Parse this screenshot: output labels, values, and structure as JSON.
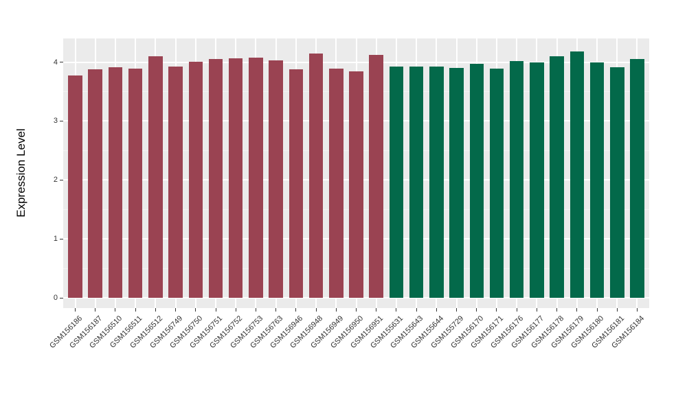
{
  "chart_data": {
    "type": "bar",
    "title": "",
    "xlabel": "",
    "ylabel": "Expression Level",
    "ylim": [
      0,
      4.4
    ],
    "yticks": [
      0,
      1,
      2,
      3,
      4
    ],
    "grid": true,
    "legend": "none",
    "panel_bg": "#EBEBEB",
    "grid_major_color": "#FFFFFF",
    "grid_minor_color": "#F4F4F4",
    "axis_text_color": "#333333",
    "group_colors": {
      "maroon": "#9A4352",
      "green": "#03694A"
    },
    "bars": [
      {
        "label": "GSM156186",
        "value": 3.77,
        "color": "#9A4352"
      },
      {
        "label": "GSM156187",
        "value": 3.88,
        "color": "#9A4352"
      },
      {
        "label": "GSM156510",
        "value": 3.91,
        "color": "#9A4352"
      },
      {
        "label": "GSM156511",
        "value": 3.89,
        "color": "#9A4352"
      },
      {
        "label": "GSM156512",
        "value": 4.1,
        "color": "#9A4352"
      },
      {
        "label": "GSM156749",
        "value": 3.93,
        "color": "#9A4352"
      },
      {
        "label": "GSM156750",
        "value": 4.01,
        "color": "#9A4352"
      },
      {
        "label": "GSM156751",
        "value": 4.05,
        "color": "#9A4352"
      },
      {
        "label": "GSM156752",
        "value": 4.06,
        "color": "#9A4352"
      },
      {
        "label": "GSM156753",
        "value": 4.07,
        "color": "#9A4352"
      },
      {
        "label": "GSM156763",
        "value": 4.03,
        "color": "#9A4352"
      },
      {
        "label": "GSM156946",
        "value": 3.88,
        "color": "#9A4352"
      },
      {
        "label": "GSM156948",
        "value": 4.14,
        "color": "#9A4352"
      },
      {
        "label": "GSM156949",
        "value": 3.89,
        "color": "#9A4352"
      },
      {
        "label": "GSM156950",
        "value": 3.84,
        "color": "#9A4352"
      },
      {
        "label": "GSM156951",
        "value": 4.12,
        "color": "#9A4352"
      },
      {
        "label": "GSM155631",
        "value": 3.92,
        "color": "#03694A"
      },
      {
        "label": "GSM155643",
        "value": 3.93,
        "color": "#03694A"
      },
      {
        "label": "GSM155644",
        "value": 3.93,
        "color": "#03694A"
      },
      {
        "label": "GSM155729",
        "value": 3.9,
        "color": "#03694A"
      },
      {
        "label": "GSM156170",
        "value": 3.97,
        "color": "#03694A"
      },
      {
        "label": "GSM156171",
        "value": 3.89,
        "color": "#03694A"
      },
      {
        "label": "GSM156176",
        "value": 4.02,
        "color": "#03694A"
      },
      {
        "label": "GSM156177",
        "value": 4.0,
        "color": "#03694A"
      },
      {
        "label": "GSM156178",
        "value": 4.1,
        "color": "#03694A"
      },
      {
        "label": "GSM156179",
        "value": 4.18,
        "color": "#03694A"
      },
      {
        "label": "GSM156180",
        "value": 3.99,
        "color": "#03694A"
      },
      {
        "label": "GSM156181",
        "value": 3.91,
        "color": "#03694A"
      },
      {
        "label": "GSM156184",
        "value": 4.05,
        "color": "#03694A"
      }
    ]
  }
}
